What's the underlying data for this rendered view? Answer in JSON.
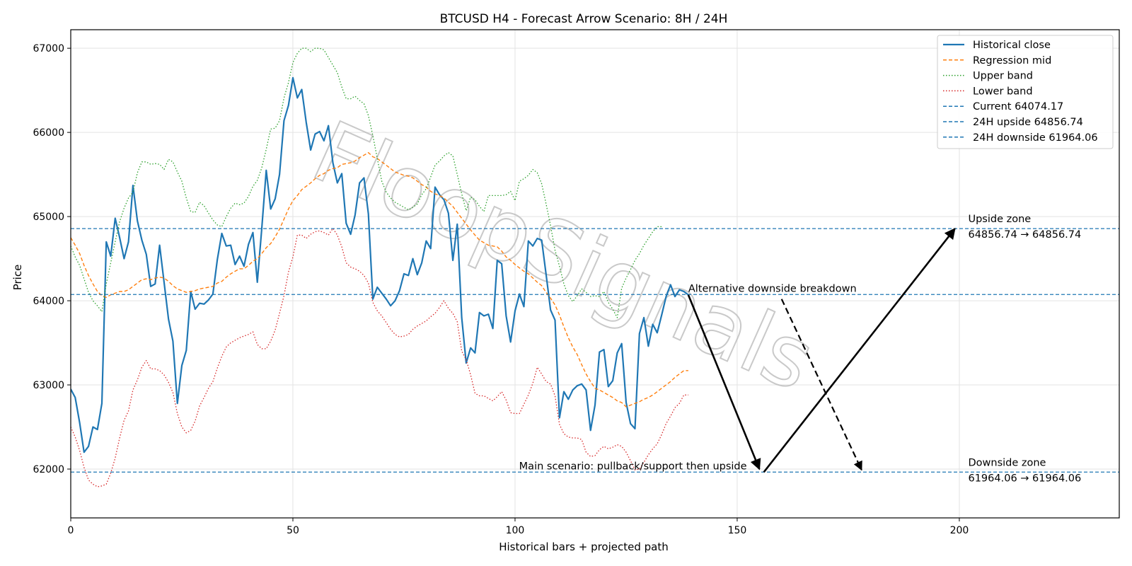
{
  "chart_data": {
    "type": "line",
    "title": "BTCUSD H4 - Forecast Arrow Scenario: 8H / 24H",
    "xlabel": "Historical bars + projected path",
    "ylabel": "Price",
    "xlim": [
      0,
      236
    ],
    "ylim": [
      61420,
      67220
    ],
    "x_ticks": [
      0,
      50,
      100,
      150,
      200
    ],
    "y_ticks": [
      62000,
      63000,
      64000,
      65000,
      66000,
      67000
    ],
    "grid": true,
    "legend_position": "top-right",
    "watermark": "FloopSignals",
    "colors": {
      "close": "#1f77b4",
      "mid": "#ff7f0e",
      "upper": "#2ca02c",
      "lower": "#d62728",
      "hline": "#1f77b4",
      "arrow": "#000000"
    },
    "series": [
      {
        "name": "Historical close",
        "style": "solid",
        "values": [
          62950,
          62850,
          62550,
          62200,
          62270,
          62500,
          62470,
          62780,
          64700,
          64530,
          64980,
          64750,
          64500,
          64700,
          65370,
          64950,
          64720,
          64550,
          64170,
          64200,
          64660,
          64220,
          63780,
          63520,
          62780,
          63230,
          63410,
          64110,
          63900,
          63970,
          63960,
          64010,
          64080,
          64490,
          64800,
          64650,
          64660,
          64430,
          64530,
          64410,
          64670,
          64810,
          64220,
          64860,
          65550,
          65090,
          65210,
          65500,
          66140,
          66320,
          66650,
          66410,
          66510,
          66120,
          65790,
          65980,
          66010,
          65900,
          66080,
          65640,
          65400,
          65510,
          64920,
          64790,
          65020,
          65400,
          65460,
          65030,
          64020,
          64160,
          64090,
          64020,
          63940,
          64000,
          64120,
          64320,
          64300,
          64500,
          64310,
          64450,
          64710,
          64620,
          65350,
          65260,
          65200,
          65040,
          64480,
          64910,
          63800,
          63260,
          63440,
          63380,
          63860,
          63820,
          63840,
          63670,
          64480,
          64440,
          63820,
          63510,
          63880,
          64080,
          63930,
          64710,
          64650,
          64740,
          64720,
          64310,
          63890,
          63770,
          62610,
          62920,
          62830,
          62940,
          62990,
          63010,
          62940,
          62460,
          62760,
          63390,
          63420,
          62980,
          63050,
          63380,
          63490,
          62790,
          62540,
          62480,
          63610,
          63800,
          63460,
          63720,
          63620,
          63830,
          64050,
          64190,
          64050,
          64130,
          64110,
          64070
        ]
      },
      {
        "name": "Regression mid",
        "style": "dashed",
        "values": [
          64750,
          64660,
          64560,
          64420,
          64300,
          64200,
          64110,
          64060,
          64040,
          64070,
          64090,
          64110,
          64110,
          64130,
          64170,
          64210,
          64250,
          64260,
          64250,
          64270,
          64280,
          64270,
          64230,
          64180,
          64140,
          64120,
          64100,
          64110,
          64120,
          64140,
          64150,
          64160,
          64170,
          64210,
          64230,
          64280,
          64320,
          64350,
          64380,
          64380,
          64420,
          64470,
          64500,
          64560,
          64630,
          64680,
          64760,
          64850,
          64970,
          65090,
          65190,
          65250,
          65320,
          65360,
          65400,
          65450,
          65490,
          65510,
          65550,
          65570,
          65580,
          65620,
          65630,
          65640,
          65660,
          65700,
          65730,
          65760,
          65710,
          65690,
          65650,
          65610,
          65570,
          65530,
          65510,
          65490,
          65480,
          65460,
          65420,
          65380,
          65350,
          65300,
          65270,
          65250,
          65220,
          65170,
          65120,
          65050,
          64980,
          64910,
          64840,
          64780,
          64720,
          64690,
          64660,
          64650,
          64640,
          64590,
          64520,
          64480,
          64430,
          64390,
          64350,
          64320,
          64270,
          64220,
          64180,
          64100,
          64030,
          63950,
          63830,
          63690,
          63560,
          63450,
          63360,
          63240,
          63130,
          63040,
          62960,
          62940,
          62910,
          62880,
          62850,
          62810,
          62790,
          62740,
          62760,
          62780,
          62800,
          62830,
          62850,
          62880,
          62920,
          62960,
          63000,
          63040,
          63090,
          63130,
          63170,
          63170
        ]
      },
      {
        "name": "Upper band",
        "style": "dotted",
        "values": [
          64650,
          64520,
          64420,
          64260,
          64100,
          64000,
          63940,
          63870,
          64200,
          64450,
          64700,
          64940,
          65100,
          65220,
          65290,
          65520,
          65650,
          65650,
          65620,
          65630,
          65620,
          65560,
          65680,
          65650,
          65530,
          65420,
          65220,
          65060,
          65050,
          65170,
          65130,
          65040,
          64960,
          64900,
          64880,
          65000,
          65100,
          65160,
          65140,
          65160,
          65240,
          65360,
          65430,
          65580,
          65800,
          66040,
          66050,
          66140,
          66410,
          66590,
          66830,
          66940,
          67000,
          67000,
          66960,
          67000,
          67000,
          66980,
          66890,
          66800,
          66710,
          66540,
          66400,
          66400,
          66430,
          66380,
          66340,
          66200,
          65960,
          65690,
          65420,
          65290,
          65220,
          65170,
          65140,
          65110,
          65080,
          65110,
          65150,
          65260,
          65330,
          65470,
          65610,
          65660,
          65720,
          65760,
          65720,
          65500,
          65270,
          65070,
          65230,
          65200,
          65120,
          65060,
          65250,
          65250,
          65250,
          65250,
          65260,
          65300,
          65190,
          65420,
          65450,
          65490,
          65560,
          65520,
          65390,
          65150,
          64890,
          64600,
          64410,
          64200,
          64060,
          63990,
          64060,
          64140,
          64100,
          64050,
          64060,
          64050,
          64110,
          63980,
          63900,
          63800,
          64150,
          64270,
          64370,
          64480,
          64560,
          64660,
          64740,
          64820,
          64880,
          64880
        ]
      },
      {
        "name": "Lower band",
        "style": "dotted",
        "values": [
          62500,
          62380,
          62220,
          62020,
          61870,
          61820,
          61790,
          61800,
          61820,
          61950,
          62130,
          62370,
          62580,
          62690,
          62940,
          63060,
          63210,
          63290,
          63190,
          63190,
          63170,
          63120,
          63030,
          62910,
          62660,
          62500,
          62430,
          62460,
          62570,
          62750,
          62850,
          62960,
          63040,
          63200,
          63340,
          63450,
          63500,
          63530,
          63560,
          63580,
          63600,
          63630,
          63480,
          63430,
          63430,
          63520,
          63650,
          63850,
          64060,
          64340,
          64520,
          64780,
          64780,
          64740,
          64790,
          64820,
          64830,
          64810,
          64780,
          64860,
          64780,
          64640,
          64450,
          64400,
          64380,
          64350,
          64300,
          64210,
          63980,
          63880,
          63820,
          63740,
          63660,
          63600,
          63570,
          63580,
          63600,
          63660,
          63700,
          63730,
          63760,
          63810,
          63850,
          63920,
          64000,
          63910,
          63850,
          63750,
          63400,
          63300,
          63120,
          62900,
          62870,
          62870,
          62840,
          62810,
          62860,
          62920,
          62820,
          62670,
          62660,
          62660,
          62770,
          62880,
          63020,
          63210,
          63130,
          63040,
          63010,
          62870,
          62530,
          62420,
          62380,
          62370,
          62370,
          62350,
          62200,
          62150,
          62160,
          62230,
          62270,
          62240,
          62260,
          62290,
          62270,
          62200,
          62100,
          61990,
          62000,
          62080,
          62170,
          62240,
          62300,
          62410,
          62540,
          62630,
          62730,
          62780,
          62880,
          62880
        ]
      }
    ],
    "hlines": [
      {
        "label": "Current 64074.17",
        "value": 64074.17
      },
      {
        "label": "24H upside 64856.74",
        "value": 64856.74
      },
      {
        "label": "24H downside 61964.06",
        "value": 61964.06
      }
    ],
    "arrows": [
      {
        "from": [
          139,
          64070
        ],
        "to": [
          155,
          62000
        ],
        "style": "solid"
      },
      {
        "from": [
          156,
          61964
        ],
        "to": [
          199,
          64856
        ],
        "style": "solid"
      },
      {
        "from": [
          160,
          64020
        ],
        "to": [
          178,
          61990
        ],
        "style": "dashed"
      }
    ],
    "annotations": [
      {
        "text": "Alternative downside breakdown",
        "x": 139,
        "y": 64070
      },
      {
        "text": "Main scenario: pullback/support then upside",
        "x": 99,
        "y": 61964
      },
      {
        "line1": "Upside zone",
        "line2": "64856.74 → 64856.74",
        "x": 202,
        "y": 64856.74
      },
      {
        "line1": "Downside zone",
        "line2": "61964.06 → 61964.06",
        "x": 202,
        "y": 61964.06
      }
    ]
  }
}
